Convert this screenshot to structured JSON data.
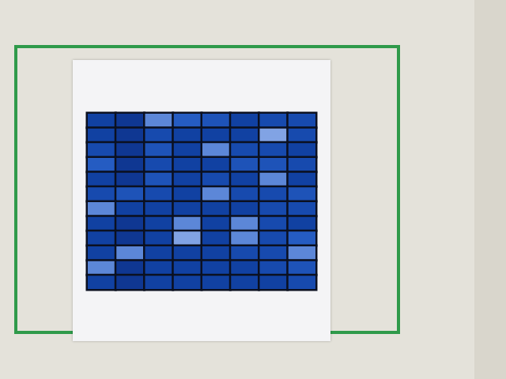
{
  "chart_data": {
    "type": "heatmap",
    "tick_labels": false,
    "zlim": [
      0,
      10
    ],
    "cells": [
      [
        3,
        2,
        8,
        6,
        5,
        3,
        4,
        4
      ],
      [
        3,
        2,
        4,
        3,
        3,
        3,
        9,
        4
      ],
      [
        4,
        2,
        5,
        3,
        8,
        4,
        4,
        3
      ],
      [
        6,
        2,
        4,
        3,
        3,
        5,
        5,
        4
      ],
      [
        3,
        2,
        5,
        3,
        4,
        3,
        8,
        3
      ],
      [
        4,
        5,
        4,
        3,
        8,
        4,
        4,
        5
      ],
      [
        8,
        3,
        3,
        3,
        3,
        3,
        4,
        4
      ],
      [
        3,
        2,
        3,
        8,
        3,
        8,
        4,
        3
      ],
      [
        3,
        2,
        3,
        9,
        3,
        8,
        4,
        6
      ],
      [
        3,
        8,
        3,
        3,
        3,
        4,
        4,
        8
      ],
      [
        8,
        2,
        3,
        3,
        3,
        3,
        4,
        5
      ],
      [
        3,
        2,
        3,
        3,
        3,
        3,
        3,
        4
      ]
    ]
  }
}
